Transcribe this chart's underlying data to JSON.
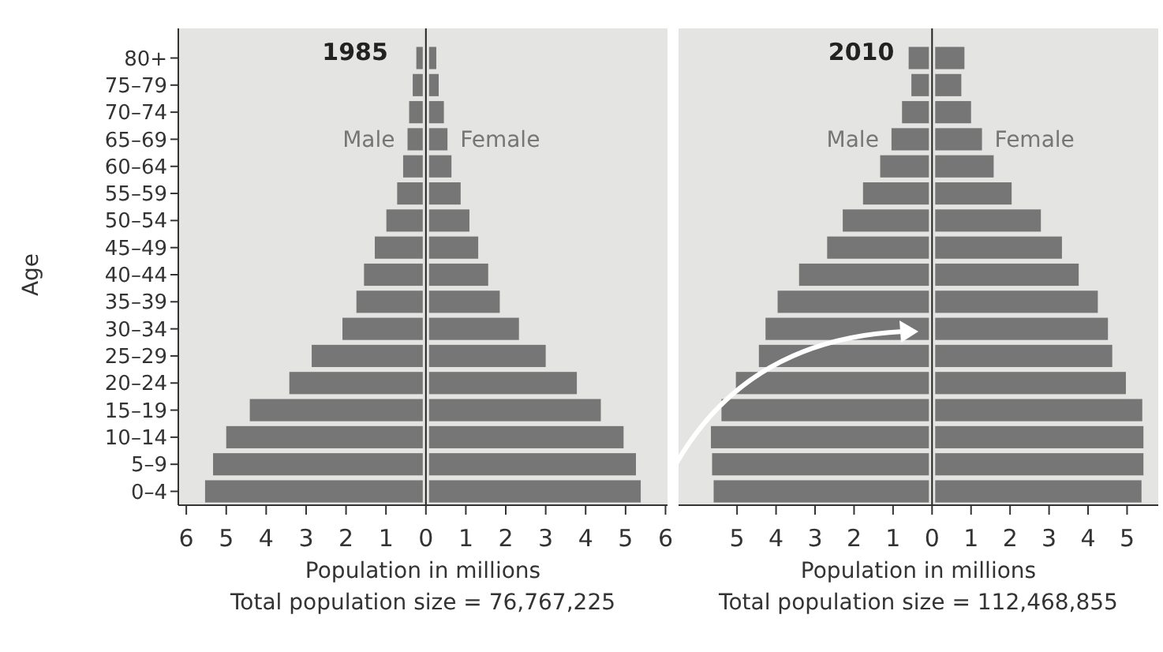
{
  "chart_data": [
    {
      "type": "bar",
      "orientation": "horizontal",
      "title": "1985",
      "ylabel": "Age",
      "xlabel": "Population in millions",
      "annotations": [
        "Total population size = 76,767,225"
      ],
      "categories": [
        "80+",
        "75–79",
        "70–74",
        "65–69",
        "60–64",
        "55–59",
        "50–54",
        "45–49",
        "40–44",
        "35–39",
        "30–34",
        "25–29",
        "20–24",
        "15–19",
        "10–14",
        "5–9",
        "0–4"
      ],
      "series": [
        {
          "name": "Male",
          "color": "#767676",
          "values": [
            -0.24,
            -0.33,
            -0.42,
            -0.46,
            -0.57,
            -0.72,
            -0.99,
            -1.28,
            -1.55,
            -1.74,
            -2.09,
            -2.86,
            -3.42,
            -4.41,
            -5.0,
            -5.33,
            -5.53
          ]
        },
        {
          "name": "Female",
          "color": "#767676",
          "values": [
            0.26,
            0.32,
            0.45,
            0.54,
            0.64,
            0.87,
            1.09,
            1.31,
            1.56,
            1.85,
            2.33,
            3.0,
            3.78,
            4.38,
            4.95,
            5.26,
            5.38
          ]
        }
      ],
      "xlim": [
        -6.2,
        6.05
      ],
      "xticks": [
        {
          "value": -6,
          "label": "6"
        },
        {
          "value": -5,
          "label": "5"
        },
        {
          "value": -4,
          "label": "4"
        },
        {
          "value": -3,
          "label": "3"
        },
        {
          "value": -2,
          "label": "2"
        },
        {
          "value": -1,
          "label": "1"
        },
        0,
        1,
        2,
        3,
        4,
        5,
        6
      ],
      "legend": false,
      "stacked": true
    },
    {
      "type": "bar",
      "orientation": "horizontal",
      "title": "2010",
      "xlabel": "Population in millions",
      "annotations": [
        "Total population size = 112,468,855"
      ],
      "categories": [
        null,
        null,
        null,
        null,
        null,
        null,
        null,
        null,
        null,
        null,
        null,
        null,
        null,
        null,
        null,
        null,
        null
      ],
      "series": [
        {
          "name": "Male",
          "color": "#767676",
          "values": [
            -0.6,
            -0.53,
            -0.77,
            -1.04,
            -1.33,
            -1.77,
            -2.29,
            -2.69,
            -3.41,
            -3.96,
            -4.27,
            -4.44,
            -5.03,
            -5.4,
            -5.67,
            -5.64,
            -5.6
          ]
        },
        {
          "name": "Female",
          "color": "#767676",
          "values": [
            0.83,
            0.75,
            1.0,
            1.28,
            1.58,
            2.04,
            2.79,
            3.33,
            3.76,
            4.25,
            4.51,
            4.62,
            4.97,
            5.39,
            5.42,
            5.42,
            5.37
          ]
        }
      ],
      "xlim": [
        -6.5,
        5.8
      ],
      "xticks": [
        {
          "value": -5,
          "label": "5"
        },
        {
          "value": -4,
          "label": "4"
        },
        {
          "value": -3,
          "label": "3"
        },
        {
          "value": -2,
          "label": "2"
        },
        {
          "value": -1,
          "label": "1"
        },
        0,
        1,
        2,
        3,
        4,
        5
      ],
      "tick_labels": "x",
      "legend": false,
      "stacked": true
    }
  ]
}
